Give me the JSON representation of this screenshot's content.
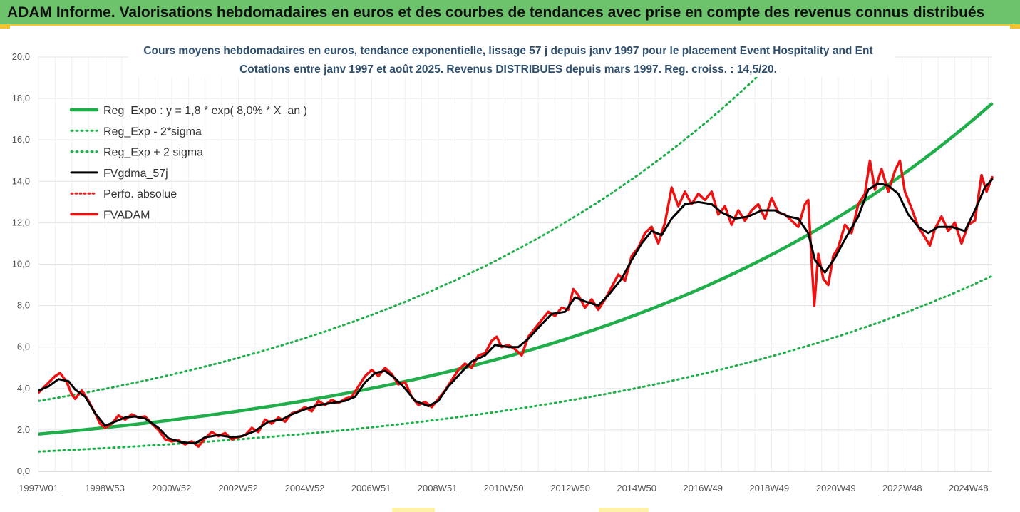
{
  "banner": {
    "title": "ADAM Informe. Valorisations hebdomadaires en euros et des courbes de tendances avec prise en compte des revenus connus distribués"
  },
  "colors": {
    "banner_bg": "#6cc36c",
    "banner_border": "#f1c232",
    "trend": "#1fae4a",
    "sigma": "#1fae4a",
    "smoothed": "#000000",
    "perfo": "#e02020",
    "price": "#ee1111",
    "title_text": "#2f4f6f",
    "grid": "#e3e3e3"
  },
  "chart_data": {
    "type": "line",
    "title": [
      "Cours moyens hebdomadaires en euros, tendance exponentielle, lissage 57 j depuis janv 1997  pour le placement Event Hospitality and Ent",
      "Cotations entre janv 1997 et août 2025. Revenus DISTRIBUES depuis mars 1997. Reg. croiss. : 14,5/20."
    ],
    "xlabel": "",
    "ylabel": "",
    "xlim": [
      1997.0,
      2025.62
    ],
    "ylim": [
      0,
      20
    ],
    "y_ticks": [
      "0,0",
      "2,0",
      "4,0",
      "6,0",
      "8,0",
      "10,0",
      "12,0",
      "14,0",
      "16,0",
      "18,0",
      "20,0"
    ],
    "x_ticks": [
      {
        "label": "1997W01",
        "x": 1997.0
      },
      {
        "label": "1998W53",
        "x": 1998.99
      },
      {
        "label": "2000W52",
        "x": 2000.99
      },
      {
        "label": "2002W52",
        "x": 2002.99
      },
      {
        "label": "2004W52",
        "x": 2004.99
      },
      {
        "label": "2006W51",
        "x": 2006.98
      },
      {
        "label": "2008W51",
        "x": 2008.97
      },
      {
        "label": "2010W50",
        "x": 2010.96
      },
      {
        "label": "2012W50",
        "x": 2012.96
      },
      {
        "label": "2014W50",
        "x": 2014.95
      },
      {
        "label": "2016W49",
        "x": 2016.94
      },
      {
        "label": "2018W49",
        "x": 2018.93
      },
      {
        "label": "2020W49",
        "x": 2020.93
      },
      {
        "label": "2022W48",
        "x": 2022.92
      },
      {
        "label": "2024W48",
        "x": 2024.91
      }
    ],
    "grid": true,
    "legend_position": "top-left",
    "series": [
      {
        "name": "Reg_Expo : y = 1,8 * exp( 8,0% *  X_an )",
        "style": "solid-thick",
        "formula": {
          "a": 1.8,
          "r": 0.08,
          "mult": 1.0
        },
        "note": "exponential trend"
      },
      {
        "name": "Reg_Exp - 2*sigma",
        "style": "dotted",
        "formula": {
          "a": 1.8,
          "r": 0.08,
          "mult": 0.531
        }
      },
      {
        "name": "Reg_Exp + 2 sigma",
        "style": "dotted",
        "formula": {
          "a": 1.8,
          "r": 0.08,
          "mult": 1.885
        }
      },
      {
        "name": "FVgdma_57j",
        "style": "solid",
        "points": [
          [
            1997.0,
            3.9
          ],
          [
            1997.3,
            4.1
          ],
          [
            1997.6,
            4.45
          ],
          [
            1997.9,
            4.35
          ],
          [
            1998.1,
            3.95
          ],
          [
            1998.4,
            3.6
          ],
          [
            1998.7,
            2.8
          ],
          [
            1999.0,
            2.2
          ],
          [
            1999.3,
            2.4
          ],
          [
            1999.6,
            2.6
          ],
          [
            1999.9,
            2.65
          ],
          [
            2000.2,
            2.55
          ],
          [
            2000.6,
            2.1
          ],
          [
            2000.9,
            1.6
          ],
          [
            2001.3,
            1.4
          ],
          [
            2001.7,
            1.35
          ],
          [
            2002.0,
            1.65
          ],
          [
            2002.4,
            1.75
          ],
          [
            2002.8,
            1.65
          ],
          [
            2003.1,
            1.7
          ],
          [
            2003.5,
            1.95
          ],
          [
            2003.9,
            2.4
          ],
          [
            2004.3,
            2.5
          ],
          [
            2004.6,
            2.75
          ],
          [
            2005.0,
            3.0
          ],
          [
            2005.4,
            3.2
          ],
          [
            2005.8,
            3.3
          ],
          [
            2006.2,
            3.4
          ],
          [
            2006.5,
            3.6
          ],
          [
            2006.8,
            4.3
          ],
          [
            2007.1,
            4.75
          ],
          [
            2007.4,
            4.85
          ],
          [
            2007.7,
            4.5
          ],
          [
            2008.0,
            4.0
          ],
          [
            2008.3,
            3.4
          ],
          [
            2008.7,
            3.15
          ],
          [
            2009.0,
            3.4
          ],
          [
            2009.3,
            4.1
          ],
          [
            2009.7,
            4.8
          ],
          [
            2010.0,
            5.3
          ],
          [
            2010.4,
            5.6
          ],
          [
            2010.7,
            6.1
          ],
          [
            2011.1,
            6.0
          ],
          [
            2011.4,
            6.0
          ],
          [
            2011.7,
            6.4
          ],
          [
            2012.1,
            7.1
          ],
          [
            2012.4,
            7.6
          ],
          [
            2012.8,
            7.7
          ],
          [
            2013.1,
            8.4
          ],
          [
            2013.4,
            8.2
          ],
          [
            2013.8,
            8.0
          ],
          [
            2014.1,
            8.5
          ],
          [
            2014.5,
            9.3
          ],
          [
            2014.8,
            10.2
          ],
          [
            2015.1,
            11.0
          ],
          [
            2015.4,
            11.6
          ],
          [
            2015.7,
            11.4
          ],
          [
            2016.0,
            12.2
          ],
          [
            2016.4,
            12.9
          ],
          [
            2016.8,
            13.0
          ],
          [
            2017.2,
            12.9
          ],
          [
            2017.5,
            12.5
          ],
          [
            2017.9,
            12.2
          ],
          [
            2018.3,
            12.3
          ],
          [
            2018.7,
            12.6
          ],
          [
            2019.1,
            12.6
          ],
          [
            2019.5,
            12.3
          ],
          [
            2019.8,
            12.2
          ],
          [
            2020.1,
            11.5
          ],
          [
            2020.3,
            10.2
          ],
          [
            2020.6,
            9.6
          ],
          [
            2020.9,
            10.3
          ],
          [
            2021.2,
            11.2
          ],
          [
            2021.6,
            12.3
          ],
          [
            2021.9,
            13.6
          ],
          [
            2022.2,
            13.9
          ],
          [
            2022.5,
            13.8
          ],
          [
            2022.8,
            13.4
          ],
          [
            2023.1,
            12.4
          ],
          [
            2023.4,
            11.8
          ],
          [
            2023.7,
            11.5
          ],
          [
            2024.0,
            11.8
          ],
          [
            2024.4,
            11.8
          ],
          [
            2024.8,
            11.6
          ],
          [
            2025.1,
            12.6
          ],
          [
            2025.4,
            13.7
          ],
          [
            2025.62,
            14.1
          ]
        ]
      },
      {
        "name": "Perfo. absolue",
        "style": "dotted",
        "points": []
      },
      {
        "name": "FVADAM",
        "style": "solid-thick",
        "points": [
          [
            1997.0,
            3.8
          ],
          [
            1997.25,
            4.2
          ],
          [
            1997.5,
            4.6
          ],
          [
            1997.65,
            4.75
          ],
          [
            1997.85,
            4.3
          ],
          [
            1998.0,
            3.7
          ],
          [
            1998.1,
            3.5
          ],
          [
            1998.3,
            3.9
          ],
          [
            1998.5,
            3.4
          ],
          [
            1998.7,
            2.8
          ],
          [
            1998.85,
            2.3
          ],
          [
            1999.0,
            2.1
          ],
          [
            1999.2,
            2.3
          ],
          [
            1999.4,
            2.7
          ],
          [
            1999.6,
            2.5
          ],
          [
            1999.8,
            2.75
          ],
          [
            2000.0,
            2.6
          ],
          [
            2000.2,
            2.65
          ],
          [
            2000.4,
            2.3
          ],
          [
            2000.6,
            2.0
          ],
          [
            2000.8,
            1.55
          ],
          [
            2001.0,
            1.45
          ],
          [
            2001.2,
            1.5
          ],
          [
            2001.4,
            1.3
          ],
          [
            2001.6,
            1.45
          ],
          [
            2001.8,
            1.2
          ],
          [
            2002.0,
            1.6
          ],
          [
            2002.2,
            1.9
          ],
          [
            2002.4,
            1.7
          ],
          [
            2002.6,
            1.85
          ],
          [
            2002.8,
            1.55
          ],
          [
            2003.0,
            1.65
          ],
          [
            2003.2,
            1.75
          ],
          [
            2003.4,
            2.1
          ],
          [
            2003.6,
            1.9
          ],
          [
            2003.8,
            2.5
          ],
          [
            2004.0,
            2.3
          ],
          [
            2004.2,
            2.6
          ],
          [
            2004.4,
            2.4
          ],
          [
            2004.6,
            2.8
          ],
          [
            2004.8,
            2.9
          ],
          [
            2005.0,
            3.1
          ],
          [
            2005.2,
            2.9
          ],
          [
            2005.4,
            3.4
          ],
          [
            2005.6,
            3.2
          ],
          [
            2005.8,
            3.45
          ],
          [
            2006.0,
            3.3
          ],
          [
            2006.2,
            3.5
          ],
          [
            2006.4,
            3.6
          ],
          [
            2006.6,
            4.1
          ],
          [
            2006.8,
            4.6
          ],
          [
            2007.0,
            4.9
          ],
          [
            2007.2,
            4.6
          ],
          [
            2007.4,
            5.0
          ],
          [
            2007.6,
            4.7
          ],
          [
            2007.8,
            4.2
          ],
          [
            2008.0,
            4.3
          ],
          [
            2008.2,
            3.6
          ],
          [
            2008.4,
            3.2
          ],
          [
            2008.6,
            3.35
          ],
          [
            2008.8,
            3.1
          ],
          [
            2009.0,
            3.5
          ],
          [
            2009.2,
            3.9
          ],
          [
            2009.4,
            4.4
          ],
          [
            2009.6,
            4.9
          ],
          [
            2009.8,
            5.2
          ],
          [
            2010.0,
            5.0
          ],
          [
            2010.2,
            5.6
          ],
          [
            2010.4,
            5.7
          ],
          [
            2010.6,
            6.3
          ],
          [
            2010.75,
            6.5
          ],
          [
            2010.9,
            6.0
          ],
          [
            2011.1,
            6.1
          ],
          [
            2011.3,
            5.9
          ],
          [
            2011.5,
            5.6
          ],
          [
            2011.7,
            6.5
          ],
          [
            2011.9,
            6.9
          ],
          [
            2012.1,
            7.3
          ],
          [
            2012.3,
            7.7
          ],
          [
            2012.5,
            7.5
          ],
          [
            2012.7,
            7.9
          ],
          [
            2012.9,
            7.8
          ],
          [
            2013.05,
            8.8
          ],
          [
            2013.2,
            8.5
          ],
          [
            2013.4,
            7.9
          ],
          [
            2013.6,
            8.3
          ],
          [
            2013.8,
            7.8
          ],
          [
            2014.0,
            8.3
          ],
          [
            2014.2,
            8.9
          ],
          [
            2014.4,
            9.5
          ],
          [
            2014.6,
            9.2
          ],
          [
            2014.8,
            10.4
          ],
          [
            2015.0,
            10.8
          ],
          [
            2015.2,
            11.5
          ],
          [
            2015.4,
            11.8
          ],
          [
            2015.6,
            11.0
          ],
          [
            2015.8,
            12.0
          ],
          [
            2016.0,
            13.7
          ],
          [
            2016.2,
            12.8
          ],
          [
            2016.4,
            13.5
          ],
          [
            2016.6,
            12.9
          ],
          [
            2016.8,
            13.4
          ],
          [
            2017.0,
            13.1
          ],
          [
            2017.2,
            13.5
          ],
          [
            2017.4,
            12.4
          ],
          [
            2017.6,
            12.8
          ],
          [
            2017.8,
            11.9
          ],
          [
            2018.0,
            12.6
          ],
          [
            2018.2,
            12.1
          ],
          [
            2018.4,
            12.6
          ],
          [
            2018.6,
            12.9
          ],
          [
            2018.8,
            12.2
          ],
          [
            2019.0,
            13.2
          ],
          [
            2019.2,
            12.5
          ],
          [
            2019.4,
            12.4
          ],
          [
            2019.6,
            12.1
          ],
          [
            2019.8,
            11.8
          ],
          [
            2020.0,
            12.9
          ],
          [
            2020.1,
            13.1
          ],
          [
            2020.2,
            10.2
          ],
          [
            2020.28,
            8.0
          ],
          [
            2020.4,
            10.5
          ],
          [
            2020.55,
            9.3
          ],
          [
            2020.7,
            9.0
          ],
          [
            2020.85,
            10.4
          ],
          [
            2021.0,
            10.8
          ],
          [
            2021.2,
            11.9
          ],
          [
            2021.4,
            11.5
          ],
          [
            2021.6,
            12.9
          ],
          [
            2021.8,
            13.4
          ],
          [
            2021.95,
            15.0
          ],
          [
            2022.1,
            13.6
          ],
          [
            2022.3,
            14.6
          ],
          [
            2022.5,
            13.5
          ],
          [
            2022.7,
            14.5
          ],
          [
            2022.85,
            15.0
          ],
          [
            2023.0,
            13.5
          ],
          [
            2023.2,
            12.7
          ],
          [
            2023.4,
            11.8
          ],
          [
            2023.6,
            11.3
          ],
          [
            2023.75,
            10.9
          ],
          [
            2023.9,
            11.7
          ],
          [
            2024.1,
            12.3
          ],
          [
            2024.3,
            11.6
          ],
          [
            2024.5,
            12.0
          ],
          [
            2024.7,
            11.0
          ],
          [
            2024.9,
            11.9
          ],
          [
            2025.1,
            12.1
          ],
          [
            2025.3,
            14.3
          ],
          [
            2025.45,
            13.5
          ],
          [
            2025.62,
            14.2
          ]
        ]
      }
    ]
  }
}
